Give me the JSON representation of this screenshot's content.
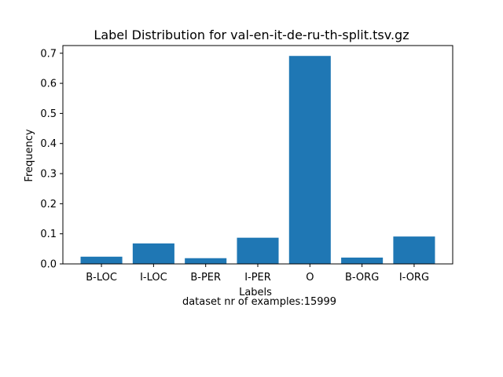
{
  "chart_data": {
    "type": "bar",
    "title": "Label Distribution for val-en-it-de-ru-th-split.tsv.gz",
    "xlabel": "Labels",
    "ylabel": "Frequency",
    "caption": "dataset nr of examples:15999",
    "categories": [
      "B-LOC",
      "I-LOC",
      "B-PER",
      "I-PER",
      "O",
      "B-ORG",
      "I-ORG"
    ],
    "values": [
      0.024,
      0.068,
      0.019,
      0.087,
      0.691,
      0.021,
      0.091
    ],
    "ylim": [
      0,
      0.7255
    ],
    "yticks": [
      0.0,
      0.1,
      0.2,
      0.3,
      0.4,
      0.5,
      0.6,
      0.7
    ],
    "ytick_labels": [
      "0.0",
      "0.1",
      "0.2",
      "0.3",
      "0.4",
      "0.5",
      "0.6",
      "0.7"
    ],
    "bar_color": "#1f77b4",
    "grid": false,
    "legend": "none"
  }
}
